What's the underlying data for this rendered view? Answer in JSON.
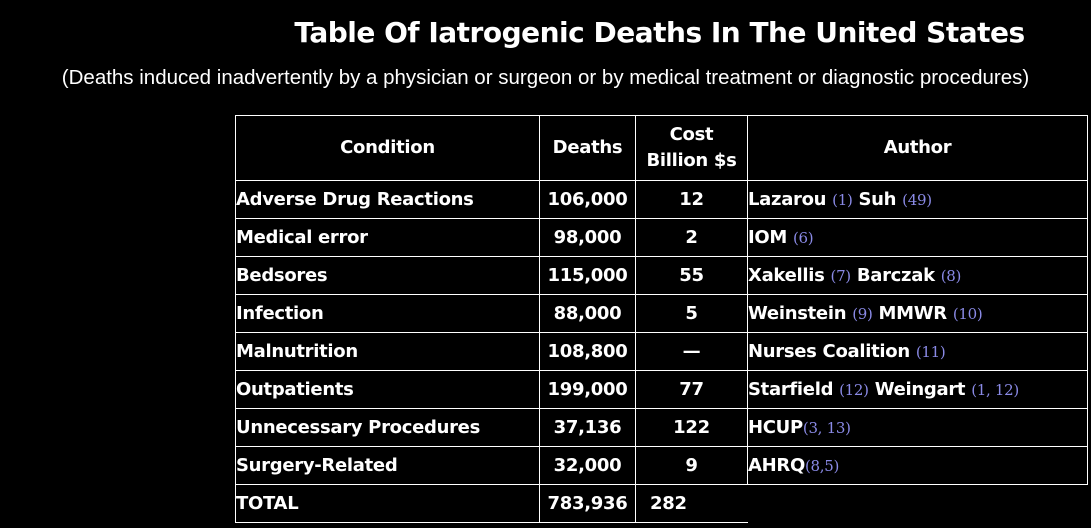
{
  "title": "Table Of Iatrogenic Deaths In The United States",
  "subtitle": "(Deaths induced inadvertently by a physician or surgeon or by medical treatment or diagnostic procedures)",
  "table": {
    "headers": {
      "condition": "Condition",
      "deaths": "Deaths",
      "cost_line1": "Cost",
      "cost_line2": "Billion $s",
      "author": "Author"
    },
    "rows": [
      {
        "condition": "Adverse Drug Reactions",
        "deaths": "106,000",
        "cost": "12",
        "authors": [
          {
            "name": "Lazarou",
            "ref": "(1)"
          },
          {
            "name": "Suh",
            "ref": "(49)"
          }
        ]
      },
      {
        "condition": "Medical error",
        "deaths": "98,000",
        "cost": "2",
        "authors": [
          {
            "name": "IOM",
            "ref": "(6)"
          }
        ]
      },
      {
        "condition": "Bedsores",
        "deaths": "115,000",
        "cost": "55",
        "authors": [
          {
            "name": "Xakellis",
            "ref": "(7)"
          },
          {
            "name": "Barczak",
            "ref": "(8)"
          }
        ]
      },
      {
        "condition": "Infection",
        "deaths": "88,000",
        "cost": "5",
        "authors": [
          {
            "name": "Weinstein",
            "ref": "(9)"
          },
          {
            "name": "MMWR",
            "ref": "(10)"
          }
        ]
      },
      {
        "condition": "Malnutrition",
        "deaths": "108,800",
        "cost": "—",
        "authors": [
          {
            "name": "Nurses Coalition",
            "ref": "(11)"
          }
        ]
      },
      {
        "condition": "Outpatients",
        "deaths": "199,000",
        "cost": "77",
        "authors": [
          {
            "name": "Starfield",
            "ref": "(12)"
          },
          {
            "name": "Weingart",
            "ref": "(1, 12)"
          }
        ]
      },
      {
        "condition": "Unnecessary Procedures",
        "deaths": "37,136",
        "cost": "122",
        "authors": [
          {
            "name": "HCUP",
            "ref": "(3, 13)"
          }
        ]
      },
      {
        "condition": "Surgery-Related",
        "deaths": "32,000",
        "cost": "9",
        "authors": [
          {
            "name": "AHRQ",
            "ref": "(8,5)"
          }
        ]
      }
    ],
    "total": {
      "label": "TOTAL",
      "deaths": "783,936",
      "cost": "282"
    }
  }
}
